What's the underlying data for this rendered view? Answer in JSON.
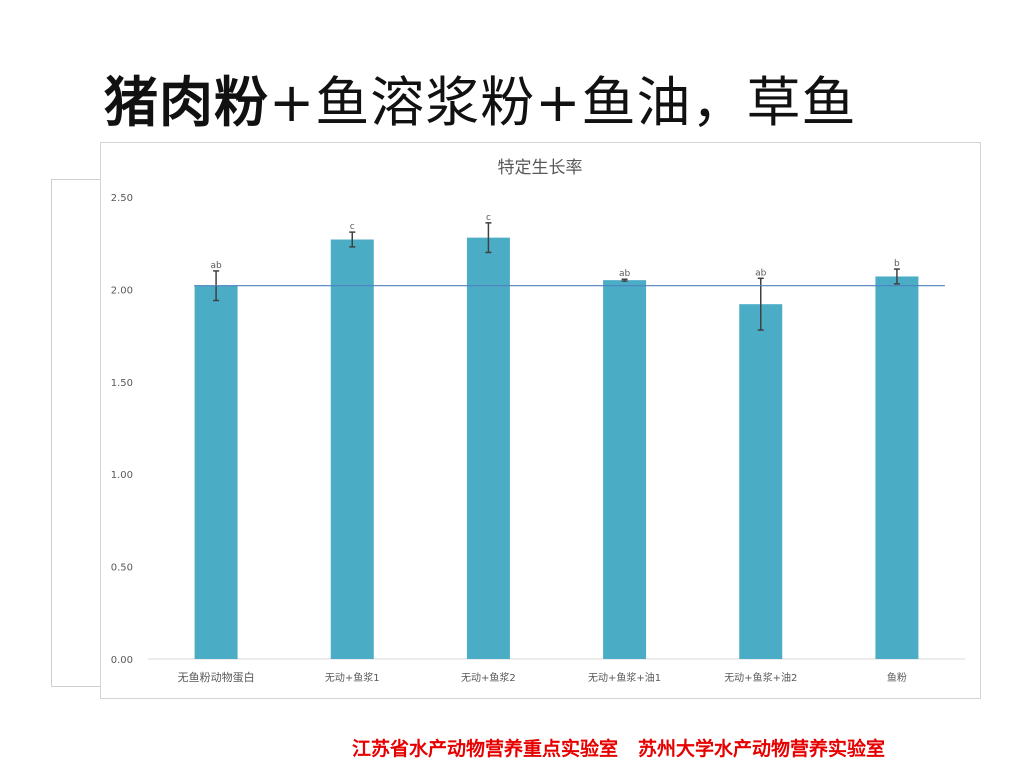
{
  "slide": {
    "title_bold": "猪肉粉",
    "title_rest": "+鱼溶浆粉+鱼油，草鱼"
  },
  "footer": {
    "lab1": "江苏省水产动物营养重点实验室",
    "lab2": "苏州大学水产动物营养实验室"
  },
  "chart_data": {
    "type": "bar",
    "title": "特定生长率",
    "xlabel": "",
    "ylabel": "",
    "categories": [
      "无鱼粉动物蛋白",
      "无动+鱼浆1",
      "无动+鱼浆2",
      "无动+鱼浆+油1",
      "无动+鱼浆+油2",
      "鱼粉"
    ],
    "values": [
      2.02,
      2.27,
      2.28,
      2.05,
      1.92,
      2.07
    ],
    "errors": [
      0.08,
      0.04,
      0.08,
      0.005,
      0.14,
      0.04
    ],
    "significance": [
      "ab",
      "c",
      "c",
      "ab",
      "ab",
      "b"
    ],
    "reference_line": 2.02,
    "ylim": [
      0,
      2.5
    ],
    "yticks": [
      "0.00",
      "0.50",
      "1.00",
      "1.50",
      "2.00",
      "2.50"
    ],
    "bar_color": "#4bacc6",
    "line_color": "#4f81bd",
    "grid": false,
    "legend": "none"
  }
}
